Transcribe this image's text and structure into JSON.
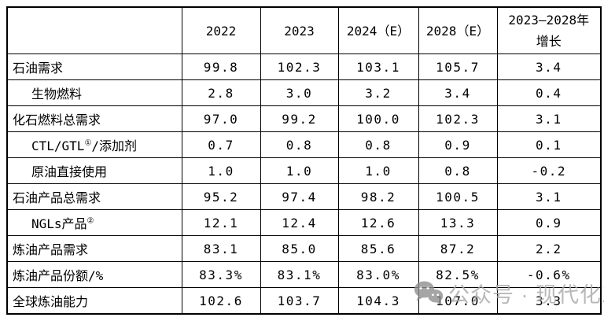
{
  "table": {
    "columns": [
      {
        "text": ""
      },
      {
        "text": "2022"
      },
      {
        "text": "2023"
      },
      {
        "text": "2024（E）"
      },
      {
        "text": "2028（E）"
      },
      {
        "text": "2023—2028年\n增长"
      }
    ],
    "rows": [
      {
        "label": [
          {
            "t": "石油需求"
          }
        ],
        "indent": false,
        "values": [
          "99.8",
          "102.3",
          "103.1",
          "105.7",
          "3.4"
        ]
      },
      {
        "label": [
          {
            "t": "生物燃料"
          }
        ],
        "indent": true,
        "values": [
          "2.8",
          "3.0",
          "3.2",
          "3.4",
          "0.4"
        ]
      },
      {
        "label": [
          {
            "t": "化石燃料总需求"
          }
        ],
        "indent": false,
        "values": [
          "97.0",
          "99.2",
          "100.0",
          "102.3",
          "3.1"
        ]
      },
      {
        "label": [
          {
            "t": "CTL/GTL"
          },
          {
            "t": "①",
            "sup": true
          },
          {
            "t": "/添加剂"
          }
        ],
        "indent": true,
        "values": [
          "0.7",
          "0.8",
          "0.8",
          "0.9",
          "0.1"
        ]
      },
      {
        "label": [
          {
            "t": "原油直接使用"
          }
        ],
        "indent": true,
        "values": [
          "1.0",
          "1.0",
          "1.0",
          "0.8",
          "-0.2"
        ]
      },
      {
        "label": [
          {
            "t": "石油产品总需求"
          }
        ],
        "indent": false,
        "values": [
          "95.2",
          "97.4",
          "98.2",
          "100.5",
          "3.1"
        ]
      },
      {
        "label": [
          {
            "t": "NGLs产品"
          },
          {
            "t": "②",
            "sup": true
          }
        ],
        "indent": true,
        "values": [
          "12.1",
          "12.4",
          "12.6",
          "13.3",
          "0.9"
        ]
      },
      {
        "label": [
          {
            "t": "炼油产品需求"
          }
        ],
        "indent": false,
        "values": [
          "83.1",
          "85.0",
          "85.6",
          "87.2",
          "2.2"
        ]
      },
      {
        "label": [
          {
            "t": "炼油产品份额/%"
          }
        ],
        "indent": false,
        "values": [
          "83.3%",
          "83.1%",
          "83.0%",
          "82.5%",
          "-0.6%"
        ]
      },
      {
        "label": [
          {
            "t": "全球炼油能力"
          }
        ],
        "indent": false,
        "values": [
          "102.6",
          "103.7",
          "104.3",
          "107.0",
          "3.3"
        ]
      }
    ]
  },
  "watermark": {
    "icon": "wechat-icon",
    "text": "公众号 · 现代化工",
    "text_color": "#a8a8a8",
    "icon_color": "#8f8f8f"
  },
  "colors": {
    "background": "#ffffff",
    "border": "#000000",
    "text": "#000000"
  }
}
